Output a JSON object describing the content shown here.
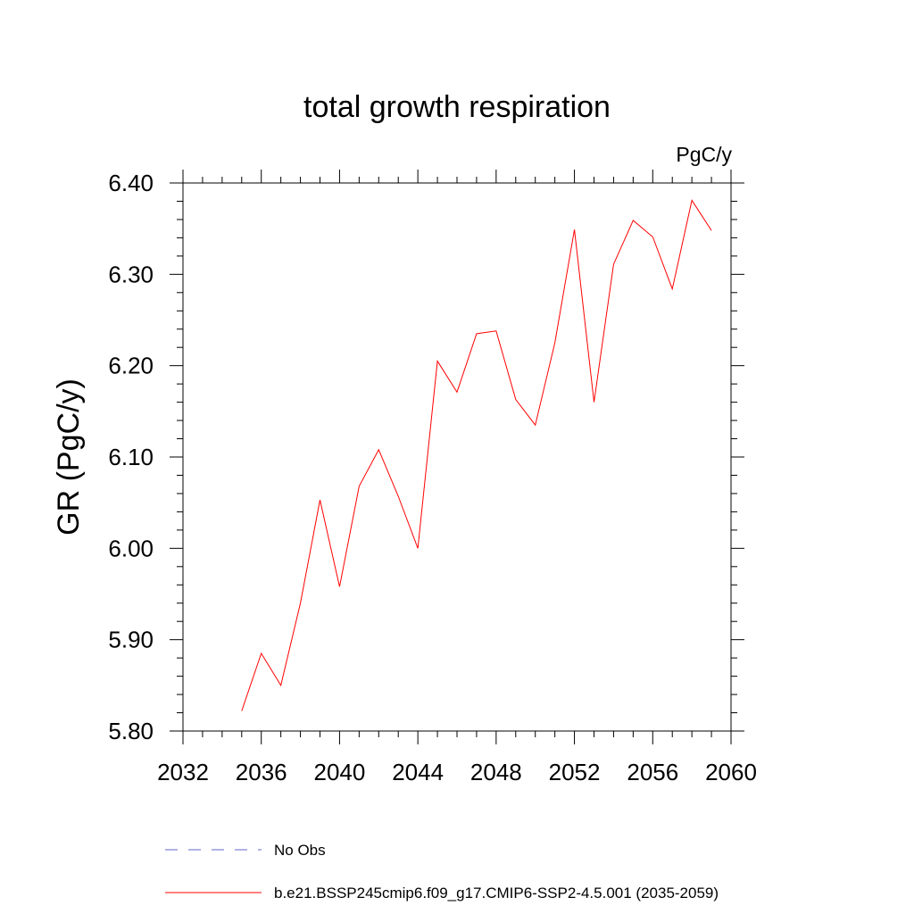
{
  "chart_data": {
    "type": "line",
    "title": "total growth respiration",
    "units_label": "PgC/y",
    "ylabel": "GR  (PgC/y)",
    "xlabel": "",
    "xlim": [
      2032,
      2060
    ],
    "ylim": [
      5.8,
      6.4
    ],
    "x_ticks": [
      2032,
      2036,
      2040,
      2044,
      2048,
      2052,
      2056,
      2060
    ],
    "x_tick_labels": [
      "2032",
      "2036",
      "2040",
      "2044",
      "2048",
      "2052",
      "2056",
      "2060"
    ],
    "y_ticks": [
      5.8,
      5.9,
      6.0,
      6.1,
      6.2,
      6.3,
      6.4
    ],
    "y_tick_labels": [
      "5.80",
      "5.90",
      "6.00",
      "6.10",
      "6.20",
      "6.30",
      "6.40"
    ],
    "grid": false,
    "legend_position": "bottom",
    "series": [
      {
        "name": "b.e21.BSSP245cmip6.f09_g17.CMIP6-SSP2-4.5.001 (2035-2059)",
        "color": "#ff0000",
        "style": "solid",
        "x": [
          2035,
          2036,
          2037,
          2038,
          2039,
          2040,
          2041,
          2042,
          2043,
          2044,
          2045,
          2046,
          2047,
          2048,
          2049,
          2050,
          2051,
          2052,
          2053,
          2054,
          2055,
          2056,
          2057,
          2058,
          2059
        ],
        "y": [
          5.822,
          5.885,
          5.85,
          5.94,
          6.053,
          5.958,
          6.068,
          6.108,
          6.057,
          6.0,
          6.205,
          6.171,
          6.235,
          6.238,
          6.163,
          6.135,
          6.225,
          6.349,
          6.16,
          6.311,
          6.359,
          6.341,
          6.284,
          6.381,
          6.348
        ]
      }
    ],
    "legend": [
      {
        "label": "No Obs",
        "color": "#6666cc",
        "style": "dashed"
      },
      {
        "label": "b.e21.BSSP245cmip6.f09_g17.CMIP6-SSP2-4.5.001 (2035-2059)",
        "color": "#ff0000",
        "style": "solid"
      }
    ]
  }
}
